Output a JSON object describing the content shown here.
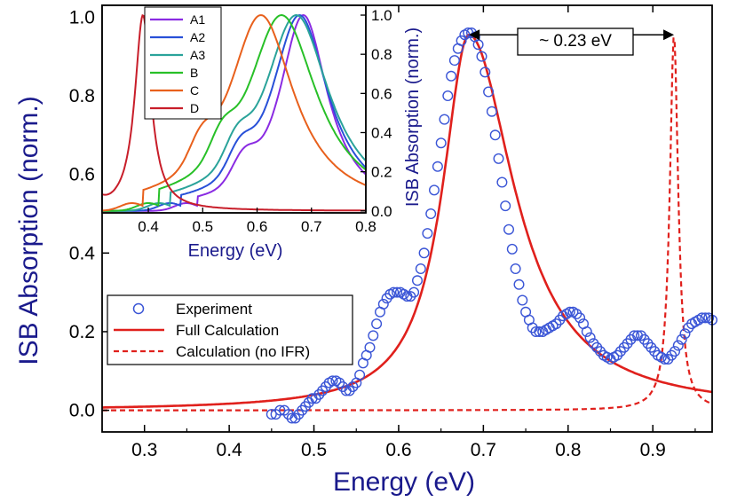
{
  "chart_data": [
    {
      "type": "line",
      "title": "",
      "xlabel": "Energy (eV)",
      "ylabel": "ISB Absorption (norm.)",
      "xlim": [
        0.25,
        0.97
      ],
      "ylim": [
        -0.055,
        1.03
      ],
      "x_ticks": [
        "0.3",
        "0.4",
        "0.5",
        "0.6",
        "0.7",
        "0.8",
        "0.9"
      ],
      "y_ticks": [
        "0.0",
        "0.2",
        "0.4",
        "0.6",
        "0.8",
        "1.0"
      ],
      "annotation": {
        "text": "~ 0.23 eV",
        "from_x": 0.683,
        "to_x": 0.925,
        "y": 0.955
      },
      "legend": {
        "position": "bottom-left"
      },
      "series": [
        {
          "name": "Experiment",
          "style": "open-circles",
          "color": "#3a55d6",
          "x": [
            0.45,
            0.455,
            0.46,
            0.465,
            0.47,
            0.474,
            0.478,
            0.482,
            0.486,
            0.49,
            0.494,
            0.498,
            0.502,
            0.506,
            0.51,
            0.514,
            0.518,
            0.522,
            0.526,
            0.53,
            0.534,
            0.538,
            0.542,
            0.546,
            0.55,
            0.554,
            0.558,
            0.562,
            0.566,
            0.57,
            0.574,
            0.578,
            0.582,
            0.586,
            0.59,
            0.594,
            0.598,
            0.602,
            0.606,
            0.61,
            0.614,
            0.618,
            0.622,
            0.626,
            0.63,
            0.634,
            0.638,
            0.642,
            0.646,
            0.65,
            0.654,
            0.658,
            0.662,
            0.666,
            0.67,
            0.674,
            0.678,
            0.682,
            0.686,
            0.69,
            0.694,
            0.698,
            0.702,
            0.706,
            0.71,
            0.714,
            0.718,
            0.722,
            0.726,
            0.73,
            0.734,
            0.738,
            0.742,
            0.746,
            0.75,
            0.754,
            0.758,
            0.762,
            0.766,
            0.77,
            0.774,
            0.778,
            0.782,
            0.786,
            0.79,
            0.794,
            0.798,
            0.802,
            0.806,
            0.81,
            0.814,
            0.818,
            0.822,
            0.826,
            0.83,
            0.834,
            0.838,
            0.842,
            0.846,
            0.85,
            0.854,
            0.858,
            0.862,
            0.866,
            0.87,
            0.874,
            0.878,
            0.882,
            0.886,
            0.89,
            0.894,
            0.898,
            0.902,
            0.906,
            0.91,
            0.914,
            0.918,
            0.922,
            0.926,
            0.93,
            0.934,
            0.938,
            0.942,
            0.946,
            0.95,
            0.954,
            0.958,
            0.962,
            0.966,
            0.97
          ],
          "y": [
            -0.01,
            -0.01,
            0.0,
            0.0,
            -0.01,
            -0.02,
            -0.02,
            -0.01,
            0.0,
            0.01,
            0.02,
            0.03,
            0.03,
            0.04,
            0.05,
            0.06,
            0.07,
            0.075,
            0.075,
            0.07,
            0.06,
            0.05,
            0.05,
            0.06,
            0.07,
            0.09,
            0.12,
            0.14,
            0.16,
            0.19,
            0.22,
            0.25,
            0.27,
            0.285,
            0.295,
            0.3,
            0.3,
            0.3,
            0.295,
            0.29,
            0.29,
            0.3,
            0.33,
            0.36,
            0.4,
            0.45,
            0.5,
            0.56,
            0.62,
            0.68,
            0.74,
            0.8,
            0.85,
            0.89,
            0.92,
            0.94,
            0.955,
            0.96,
            0.96,
            0.95,
            0.93,
            0.9,
            0.86,
            0.81,
            0.76,
            0.7,
            0.64,
            0.58,
            0.52,
            0.46,
            0.41,
            0.36,
            0.32,
            0.28,
            0.25,
            0.23,
            0.21,
            0.2,
            0.2,
            0.2,
            0.205,
            0.21,
            0.215,
            0.22,
            0.23,
            0.24,
            0.245,
            0.25,
            0.25,
            0.245,
            0.235,
            0.22,
            0.2,
            0.185,
            0.17,
            0.16,
            0.15,
            0.14,
            0.135,
            0.13,
            0.135,
            0.14,
            0.15,
            0.16,
            0.17,
            0.18,
            0.19,
            0.19,
            0.19,
            0.18,
            0.17,
            0.16,
            0.15,
            0.14,
            0.135,
            0.13,
            0.13,
            0.14,
            0.15,
            0.165,
            0.18,
            0.195,
            0.21,
            0.22,
            0.225,
            0.23,
            0.235,
            0.235,
            0.235,
            0.23
          ]
        },
        {
          "name": "Full Calculation",
          "style": "solid",
          "color": "#e0201c",
          "peak": 0.683,
          "width_left": 0.038,
          "width_right": 0.065,
          "amplitude": 0.955,
          "x_range": [
            0.25,
            0.97
          ]
        },
        {
          "name": "Calculation (no IFR)",
          "style": "dashed",
          "color": "#e0201c",
          "peak": 0.925,
          "width": 0.006,
          "amplitude": 0.955,
          "x_range": [
            0.25,
            0.97
          ]
        }
      ]
    },
    {
      "type": "line",
      "title": "",
      "xlabel": "Energy (eV)",
      "ylabel": "ISB Absorption (norm.)",
      "xlim": [
        0.315,
        0.8
      ],
      "ylim": [
        -0.01,
        1.05
      ],
      "x_ticks": [
        "0.4",
        "0.5",
        "0.6",
        "0.7",
        "0.8"
      ],
      "y_ticks": [
        "0.0",
        "0.2",
        "0.4",
        "0.6",
        "0.8",
        "1.0"
      ],
      "legend": {
        "position": "top-center"
      },
      "series": [
        {
          "name": "A1",
          "color": "#8a2be2",
          "peak": 0.685,
          "width": 0.055,
          "onset": 0.49
        },
        {
          "name": "A2",
          "color": "#2850d8",
          "peak": 0.678,
          "width": 0.065,
          "onset": 0.46
        },
        {
          "name": "A3",
          "color": "#2aa39a",
          "peak": 0.672,
          "width": 0.075,
          "onset": 0.44
        },
        {
          "name": "B",
          "color": "#28c028",
          "peak": 0.645,
          "width": 0.08,
          "onset": 0.42
        },
        {
          "name": "C",
          "color": "#e8601c",
          "peak": 0.607,
          "width": 0.075,
          "onset": 0.39
        },
        {
          "name": "D",
          "color": "#c81e2a",
          "peak": 0.39,
          "width": 0.018,
          "onset": 0.315
        }
      ]
    }
  ]
}
